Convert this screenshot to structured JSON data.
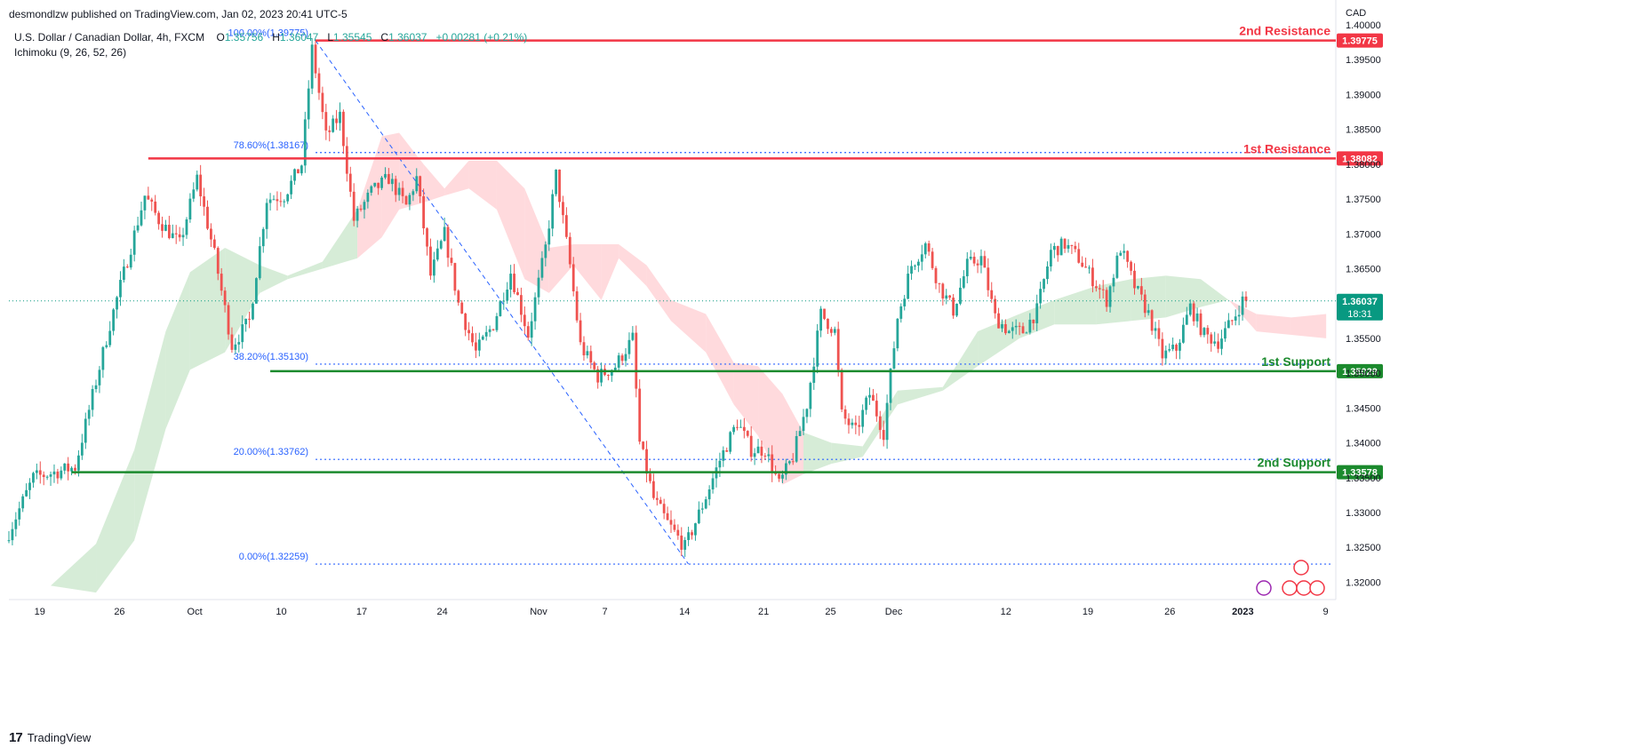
{
  "header": {
    "published_text": "desmondlzw published on TradingView.com, Jan 02, 2023 20:41 UTC-5"
  },
  "legend": {
    "symbol": "U.S. Dollar / Canadian Dollar, 4h, FXCM",
    "open_label": "O",
    "open": "1.35756",
    "high_label": "H",
    "high": "1.36047",
    "low_label": "L",
    "low": "1.35545",
    "close_label": "C",
    "close": "1.36037",
    "change": "+0.00281 (+0.21%)",
    "indicator": "Ichimoku (9, 26, 52, 26)"
  },
  "footer": {
    "brand": "TradingView",
    "logo_text": "17"
  },
  "colors": {
    "up": "#26a69a",
    "down": "#ef5350",
    "resistance": "#f23645",
    "support": "#1b8a2d",
    "fib": "#2962ff",
    "cloud_up": "#c8e6c9",
    "cloud_down": "#ffcdd2",
    "price_label": "#089981"
  },
  "chart_data": {
    "type": "candlestick",
    "title": "U.S. Dollar / Canadian Dollar, 4h, FXCM",
    "currency": "CAD",
    "ylim": [
      1.3175,
      1.4
    ],
    "yticks": [
      "1.40000",
      "1.39500",
      "1.39000",
      "1.38500",
      "1.38000",
      "1.37500",
      "1.37000",
      "1.36500",
      "1.36000",
      "1.35500",
      "1.35000",
      "1.34500",
      "1.34000",
      "1.33500",
      "1.33000",
      "1.32500",
      "1.32000"
    ],
    "xticks": [
      "19",
      "26",
      "Oct",
      "10",
      "17",
      "24",
      "Nov",
      "7",
      "14",
      "21",
      "25",
      "Dec",
      "12",
      "19",
      "26",
      "2023",
      "9"
    ],
    "horizontal_levels": [
      {
        "name": "2nd Resistance",
        "value": 1.39775,
        "label": "1.39775",
        "kind": "resistance"
      },
      {
        "name": "1st Resistance",
        "value": 1.38082,
        "label": "1.38082",
        "kind": "resistance"
      },
      {
        "name": "1st Support",
        "value": 1.35029,
        "label": "1.35029",
        "kind": "support"
      },
      {
        "name": "2nd Support",
        "value": 1.33578,
        "label": "1.33578",
        "kind": "support"
      }
    ],
    "fibonacci": [
      {
        "label": "100.00%(1.39775)",
        "value": 1.39775
      },
      {
        "label": "78.60%(1.38167)",
        "value": 1.38167
      },
      {
        "label": "38.20%(1.35130)",
        "value": 1.3513
      },
      {
        "label": "20.00%(1.33762)",
        "value": 1.33762
      },
      {
        "label": "0.00%(1.32259)",
        "value": 1.32259
      }
    ],
    "current_price": {
      "value": 1.36037,
      "label": "1.36037",
      "countdown": "18:31"
    },
    "anchors": [
      {
        "t": 0,
        "p": 1.326
      },
      {
        "t": 8,
        "p": 1.335
      },
      {
        "t": 20,
        "p": 1.3365
      },
      {
        "t": 30,
        "p": 1.357
      },
      {
        "t": 40,
        "p": 1.3755
      },
      {
        "t": 44,
        "p": 1.372
      },
      {
        "t": 50,
        "p": 1.3685
      },
      {
        "t": 55,
        "p": 1.378
      },
      {
        "t": 60,
        "p": 1.367
      },
      {
        "t": 65,
        "p": 1.354
      },
      {
        "t": 70,
        "p": 1.3575
      },
      {
        "t": 75,
        "p": 1.375
      },
      {
        "t": 80,
        "p": 1.3755
      },
      {
        "t": 85,
        "p": 1.38
      },
      {
        "t": 88,
        "p": 1.3965
      },
      {
        "t": 92,
        "p": 1.384
      },
      {
        "t": 96,
        "p": 1.387
      },
      {
        "t": 100,
        "p": 1.372
      },
      {
        "t": 105,
        "p": 1.376
      },
      {
        "t": 110,
        "p": 1.378
      },
      {
        "t": 115,
        "p": 1.374
      },
      {
        "t": 118,
        "p": 1.378
      },
      {
        "t": 122,
        "p": 1.364
      },
      {
        "t": 126,
        "p": 1.37
      },
      {
        "t": 130,
        "p": 1.36
      },
      {
        "t": 135,
        "p": 1.353
      },
      {
        "t": 140,
        "p": 1.357
      },
      {
        "t": 145,
        "p": 1.3645
      },
      {
        "t": 150,
        "p": 1.3555
      },
      {
        "t": 155,
        "p": 1.368
      },
      {
        "t": 158,
        "p": 1.3785
      },
      {
        "t": 162,
        "p": 1.3655
      },
      {
        "t": 165,
        "p": 1.354
      },
      {
        "t": 170,
        "p": 1.3495
      },
      {
        "t": 175,
        "p": 1.351
      },
      {
        "t": 180,
        "p": 1.355
      },
      {
        "t": 182,
        "p": 1.34
      },
      {
        "t": 186,
        "p": 1.332
      },
      {
        "t": 190,
        "p": 1.3285
      },
      {
        "t": 195,
        "p": 1.325
      },
      {
        "t": 200,
        "p": 1.331
      },
      {
        "t": 205,
        "p": 1.3375
      },
      {
        "t": 210,
        "p": 1.343
      },
      {
        "t": 214,
        "p": 1.339
      },
      {
        "t": 218,
        "p": 1.339
      },
      {
        "t": 222,
        "p": 1.334
      },
      {
        "t": 226,
        "p": 1.338
      },
      {
        "t": 230,
        "p": 1.3455
      },
      {
        "t": 234,
        "p": 1.3585
      },
      {
        "t": 238,
        "p": 1.356
      },
      {
        "t": 240,
        "p": 1.344
      },
      {
        "t": 244,
        "p": 1.3415
      },
      {
        "t": 248,
        "p": 1.347
      },
      {
        "t": 252,
        "p": 1.3415
      },
      {
        "t": 256,
        "p": 1.358
      },
      {
        "t": 260,
        "p": 1.3655
      },
      {
        "t": 264,
        "p": 1.3685
      },
      {
        "t": 268,
        "p": 1.3625
      },
      {
        "t": 272,
        "p": 1.359
      },
      {
        "t": 276,
        "p": 1.3655
      },
      {
        "t": 280,
        "p": 1.3665
      },
      {
        "t": 284,
        "p": 1.358
      },
      {
        "t": 288,
        "p": 1.356
      },
      {
        "t": 292,
        "p": 1.356
      },
      {
        "t": 296,
        "p": 1.359
      },
      {
        "t": 300,
        "p": 1.3675
      },
      {
        "t": 304,
        "p": 1.3685
      },
      {
        "t": 308,
        "p": 1.3665
      },
      {
        "t": 312,
        "p": 1.3635
      },
      {
        "t": 316,
        "p": 1.3605
      },
      {
        "t": 320,
        "p": 1.368
      },
      {
        "t": 324,
        "p": 1.3625
      },
      {
        "t": 328,
        "p": 1.3585
      },
      {
        "t": 332,
        "p": 1.3525
      },
      {
        "t": 336,
        "p": 1.3535
      },
      {
        "t": 340,
        "p": 1.3595
      },
      {
        "t": 344,
        "p": 1.3555
      },
      {
        "t": 348,
        "p": 1.3545
      },
      {
        "t": 352,
        "p": 1.3575
      },
      {
        "t": 355,
        "p": 1.3604
      }
    ],
    "kumo": [
      {
        "t": 12,
        "top": 1.3195,
        "bot": 1.3195
      },
      {
        "t": 25,
        "top": 1.3255,
        "bot": 1.3185
      },
      {
        "t": 36,
        "top": 1.339,
        "bot": 1.326
      },
      {
        "t": 45,
        "top": 1.356,
        "bot": 1.342
      },
      {
        "t": 52,
        "top": 1.3645,
        "bot": 1.3505
      },
      {
        "t": 62,
        "top": 1.368,
        "bot": 1.353
      },
      {
        "t": 72,
        "top": 1.3655,
        "bot": 1.3615
      },
      {
        "t": 80,
        "top": 1.364,
        "bot": 1.3635
      },
      {
        "t": 90,
        "top": 1.366,
        "bot": 1.365
      },
      {
        "t": 100,
        "top": 1.3735,
        "bot": 1.3665
      },
      {
        "t": 107,
        "top": 1.384,
        "bot": 1.3695
      },
      {
        "t": 112,
        "top": 1.3845,
        "bot": 1.3735
      },
      {
        "t": 119,
        "top": 1.38,
        "bot": 1.3745
      },
      {
        "t": 125,
        "top": 1.3765,
        "bot": 1.3755
      },
      {
        "t": 132,
        "top": 1.3805,
        "bot": 1.3765
      },
      {
        "t": 140,
        "top": 1.3805,
        "bot": 1.3735
      },
      {
        "t": 148,
        "top": 1.3765,
        "bot": 1.3635
      },
      {
        "t": 155,
        "top": 1.368,
        "bot": 1.3615
      },
      {
        "t": 162,
        "top": 1.3685,
        "bot": 1.3655
      },
      {
        "t": 170,
        "top": 1.3685,
        "bot": 1.3605
      },
      {
        "t": 175,
        "top": 1.3685,
        "bot": 1.3665
      },
      {
        "t": 183,
        "top": 1.3655,
        "bot": 1.3625
      },
      {
        "t": 190,
        "top": 1.3605,
        "bot": 1.3575
      },
      {
        "t": 200,
        "top": 1.3585,
        "bot": 1.353
      },
      {
        "t": 208,
        "top": 1.3515,
        "bot": 1.3455
      },
      {
        "t": 215,
        "top": 1.351,
        "bot": 1.341
      },
      {
        "t": 222,
        "top": 1.347,
        "bot": 1.334
      },
      {
        "t": 228,
        "top": 1.3415,
        "bot": 1.3355
      },
      {
        "t": 236,
        "top": 1.34,
        "bot": 1.337
      },
      {
        "t": 245,
        "top": 1.3395,
        "bot": 1.338
      },
      {
        "t": 255,
        "top": 1.3475,
        "bot": 1.3455
      },
      {
        "t": 268,
        "top": 1.348,
        "bot": 1.3475
      },
      {
        "t": 278,
        "top": 1.356,
        "bot": 1.351
      },
      {
        "t": 290,
        "top": 1.3585,
        "bot": 1.355
      },
      {
        "t": 300,
        "top": 1.3605,
        "bot": 1.357
      },
      {
        "t": 312,
        "top": 1.3625,
        "bot": 1.357
      },
      {
        "t": 322,
        "top": 1.3635,
        "bot": 1.3575
      },
      {
        "t": 332,
        "top": 1.364,
        "bot": 1.358
      },
      {
        "t": 342,
        "top": 1.3635,
        "bot": 1.3595
      },
      {
        "t": 350,
        "top": 1.3605,
        "bot": 1.3605
      },
      {
        "t": 358,
        "top": 1.3585,
        "bot": 1.356
      },
      {
        "t": 368,
        "top": 1.358,
        "bot": 1.3555
      },
      {
        "t": 378,
        "top": 1.3585,
        "bot": 1.355
      }
    ]
  }
}
